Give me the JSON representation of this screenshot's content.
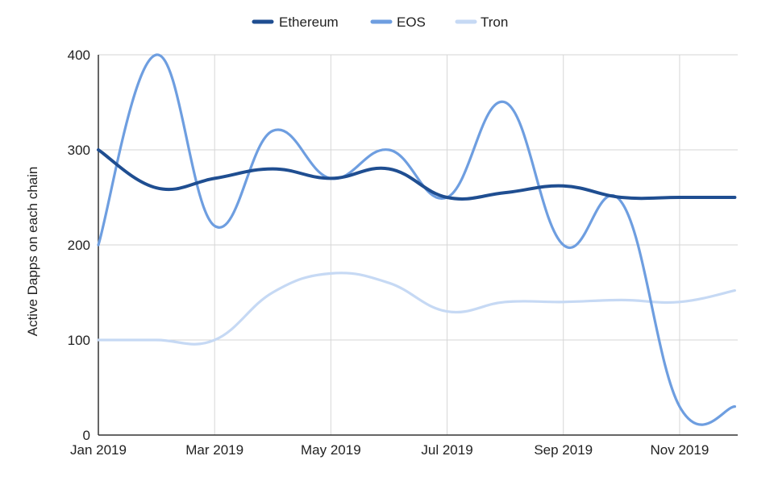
{
  "chart_data": {
    "type": "line",
    "ylabel": "Active Dapps on each chain",
    "xlabel": "",
    "ylim": [
      0,
      400
    ],
    "yticks": [
      0,
      100,
      200,
      300,
      400
    ],
    "x_tick_labels": [
      "Jan 2019",
      "Mar 2019",
      "May 2019",
      "Jul 2019",
      "Sep 2019",
      "Nov 2019"
    ],
    "x_tick_positions": [
      0,
      2,
      4,
      6,
      8,
      10
    ],
    "x": [
      0,
      1,
      2,
      3,
      4,
      5,
      6,
      7,
      8,
      9,
      10,
      10.95
    ],
    "legend_position": "top-center",
    "grid": true,
    "series": [
      {
        "name": "Ethereum",
        "color": "#1f4e91",
        "values": [
          300,
          260,
          270,
          280,
          270,
          280,
          250,
          255,
          262,
          250,
          250,
          250
        ]
      },
      {
        "name": "EOS",
        "color": "#6e9ee0",
        "values": [
          200,
          400,
          220,
          320,
          270,
          300,
          250,
          350,
          200,
          245,
          30,
          30
        ]
      },
      {
        "name": "Tron",
        "color": "#c6d9f4",
        "values": [
          100,
          100,
          100,
          150,
          170,
          160,
          130,
          140,
          140,
          142,
          140,
          152
        ]
      }
    ]
  }
}
